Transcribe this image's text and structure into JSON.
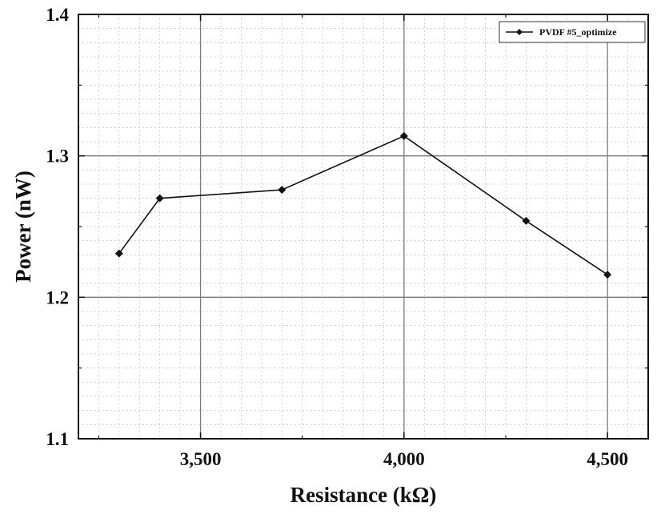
{
  "chart_data": {
    "type": "line",
    "title": "",
    "xlabel": "Resistance (kΩ)",
    "ylabel": "Power (nW)",
    "xlim": [
      3200,
      4600
    ],
    "ylim": [
      1.1,
      1.4
    ],
    "x_ticks": [
      3500,
      4000,
      4500
    ],
    "x_tick_labels": [
      "3,500",
      "4,000",
      "4,500"
    ],
    "y_ticks": [
      1.1,
      1.2,
      1.3,
      1.4
    ],
    "y_tick_labels": [
      "1.1",
      "1.2",
      "1.3",
      "1.4"
    ],
    "grid": {
      "major": true,
      "minor": true
    },
    "legend": {
      "position": "top-right"
    },
    "series": [
      {
        "name": "PVDF #5_optimize",
        "marker": "diamond",
        "color": "#111111",
        "x": [
          3300,
          3400,
          3700,
          4000,
          4300,
          4500
        ],
        "y": [
          1.231,
          1.27,
          1.276,
          1.314,
          1.254,
          1.216
        ]
      }
    ]
  }
}
